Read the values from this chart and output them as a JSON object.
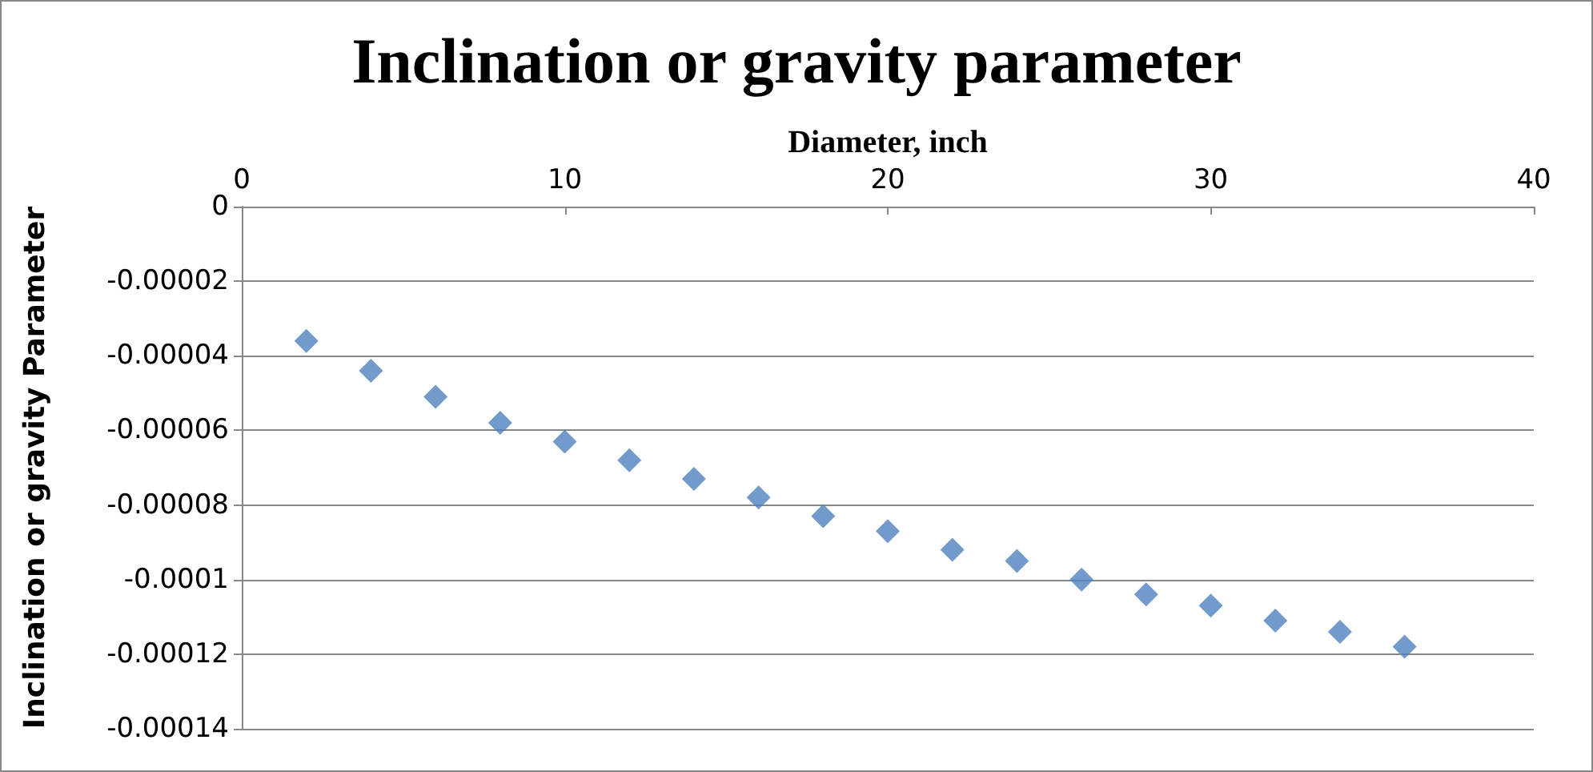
{
  "chart_data": {
    "type": "scatter",
    "title": "Inclination or gravity parameter",
    "xlabel": "Diameter, inch",
    "ylabel": "Inclination or gravity Parameter",
    "x": [
      2,
      4,
      6,
      8,
      10,
      12,
      14,
      16,
      18,
      20,
      22,
      24,
      26,
      28,
      30,
      32,
      34,
      36
    ],
    "series": [
      {
        "color": "#4f81bd",
        "values": [
          -3.6e-05,
          -4.4e-05,
          -5.1e-05,
          -5.8e-05,
          -6.3e-05,
          -6.8e-05,
          -7.3e-05,
          -7.8e-05,
          -8.3e-05,
          -8.7e-05,
          -9.2e-05,
          -9.5e-05,
          -0.0001,
          -0.000104,
          -0.000107,
          -0.000111,
          -0.000114,
          -0.000118
        ]
      }
    ],
    "xlim": [
      0,
      40
    ],
    "xticks": [
      0,
      10,
      20,
      30,
      40
    ],
    "ylim": [
      -0.00014,
      0
    ],
    "yticks": [
      0,
      {
        "value": -2e-05,
        "label": "-0.00002"
      },
      {
        "value": -4e-05,
        "label": "-0.00004"
      },
      {
        "value": -6e-05,
        "label": "-0.00006"
      },
      {
        "value": -8e-05,
        "label": "-0.00008"
      },
      -0.0001,
      -0.00012,
      -0.00014
    ],
    "grid": "y",
    "marker": "diamond"
  }
}
